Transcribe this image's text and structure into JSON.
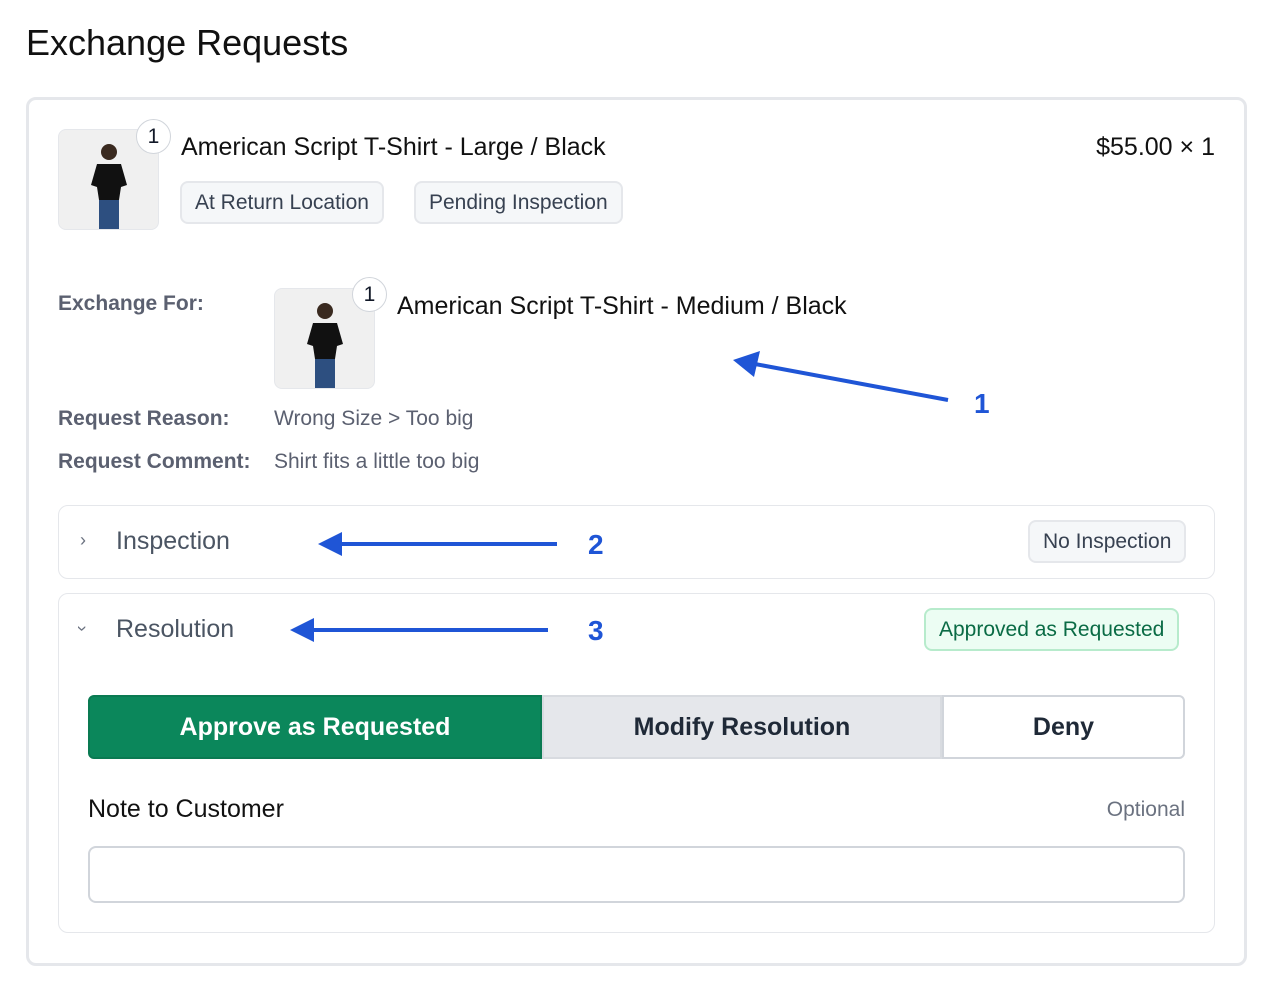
{
  "page_title": "Exchange Requests",
  "item": {
    "title": "American Script T-Shirt - Large / Black",
    "quantity_badge": "1",
    "price": "$55.00 × 1",
    "badges": [
      "At Return Location",
      "Pending Inspection"
    ]
  },
  "exchange": {
    "label": "Exchange For:",
    "title": "American Script T-Shirt - Medium / Black",
    "quantity_badge": "1"
  },
  "reason": {
    "label": "Request Reason:",
    "value": "Wrong Size",
    "separator": ">",
    "sub_value": "Too big"
  },
  "comment": {
    "label": "Request Comment:",
    "value": "Shirt fits a little too big"
  },
  "inspection": {
    "title": "Inspection",
    "status": "No Inspection",
    "expanded": false
  },
  "resolution": {
    "title": "Resolution",
    "status": "Approved as Requested",
    "expanded": true,
    "options": [
      "Approve as Requested",
      "Modify Resolution",
      "Deny"
    ],
    "selected": "Approve as Requested",
    "note_label": "Note to Customer",
    "note_optional": "Optional",
    "note_value": ""
  },
  "annotations": [
    "1",
    "2",
    "3"
  ],
  "colors": {
    "accent_green": "#0b875b",
    "annotation_blue": "#1f55d6",
    "approved_bg": "#ecfdf3"
  }
}
